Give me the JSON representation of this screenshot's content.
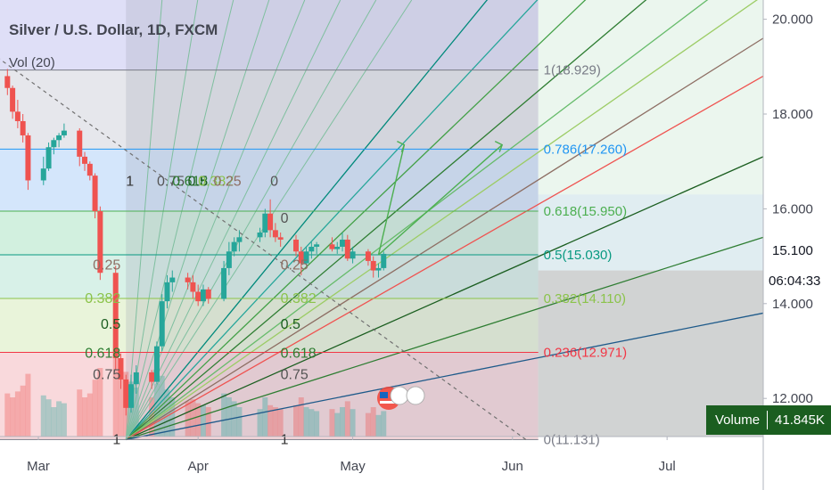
{
  "header": {
    "symbol": "Silver / U.S. Dollar, 1D, FXCM",
    "volume_indicator": "Vol (20)"
  },
  "chart_data": {
    "type": "candlestick",
    "title": "Silver / U.S. Dollar, 1D, FXCM",
    "y_axis": {
      "ticks": [
        "20.000",
        "18.000",
        "16.000",
        "14.000",
        "12.000"
      ],
      "tick_values": [
        20,
        18,
        16,
        14,
        12
      ],
      "range": [
        10.8,
        20.5
      ]
    },
    "x_axis": {
      "labels": [
        "Mar",
        "Apr",
        "May",
        "Jun",
        "Jul"
      ],
      "label_dates": [
        "2020-03-01",
        "2020-04-01",
        "2020-05-01",
        "2020-06-01",
        "2020-07-01"
      ],
      "range": [
        "2020-02-22",
        "2020-07-31"
      ]
    },
    "last_price": "15.100",
    "countdown": "06:04:33",
    "volume_badge": {
      "label": "Volume",
      "value": "41.845K"
    },
    "fib_retracement": {
      "colors": [
        "#787b86",
        "#2962ff",
        "#4caf50",
        "#089981",
        "#81c784",
        "#f23645",
        "#787b86"
      ],
      "levels": [
        {
          "ratio": 1,
          "price": 18.929,
          "text": "1(18.929)",
          "color": "#787b86"
        },
        {
          "ratio": 0.786,
          "price": 17.26,
          "text": "0.786(17.260)",
          "color": "#2196f3"
        },
        {
          "ratio": 0.618,
          "price": 15.95,
          "text": "0.618(15.950)",
          "color": "#4caf50"
        },
        {
          "ratio": 0.5,
          "price": 15.03,
          "text": "0.5(15.030)",
          "color": "#089981"
        },
        {
          "ratio": 0.382,
          "price": 14.11,
          "text": "0.382(14.110)",
          "color": "#8bc34a"
        },
        {
          "ratio": 0.236,
          "price": 12.971,
          "text": "0.236(12.971)",
          "color": "#f23645"
        },
        {
          "ratio": 0,
          "price": 11.131,
          "text": "0(11.131)",
          "color": "#787b86"
        }
      ],
      "end_date": "2020-06-06"
    },
    "gann_box": {
      "start_date": "2020-03-18",
      "price_labels": [
        "1",
        "0.75",
        "0.618",
        "0.5",
        "0.382",
        "0.25"
      ],
      "price_label_values": [
        11.131,
        12.5,
        12.95,
        13.56,
        14.11,
        14.81
      ],
      "mid_labels": [
        "1",
        "0.75",
        "0.618",
        "0.5",
        "0.382",
        "0.25",
        "0"
      ],
      "mid_label_values": [
        11.131,
        12.5,
        12.95,
        13.56,
        14.11,
        14.81,
        15.8
      ],
      "top_labels": [
        "1",
        "0.75",
        "0.618",
        "0.5",
        "0.382",
        "0.25",
        "0"
      ],
      "top_label_values": [
        16.49,
        16.49,
        16.49,
        16.49,
        16.49,
        16.49,
        16.49
      ],
      "top_label_dates": [
        "2020-03-18",
        "2020-03-24",
        "2020-03-27",
        "2020-03-30",
        "2020-04-01",
        "2020-04-04",
        "2020-04-15"
      ],
      "fan_end_prices": [
        27.5,
        25.5,
        24.0,
        22.5,
        21.3,
        20.5,
        19.6,
        18.8,
        17.1,
        15.4,
        13.8
      ]
    },
    "trend_line": {
      "from": [
        "2020-02-22",
        19.2
      ],
      "to": [
        "2020-06-04",
        11.1
      ]
    },
    "projection_arrows": [
      {
        "from": [
          "2020-05-06",
          15.03
        ],
        "to": [
          "2020-05-11",
          17.35
        ]
      },
      {
        "from": [
          "2020-05-06",
          15.03
        ],
        "to": [
          "2020-05-30",
          17.35
        ]
      }
    ],
    "candles": [
      {
        "date": "2020-02-24",
        "o": 18.8,
        "h": 18.95,
        "l": 18.4,
        "c": 18.55
      },
      {
        "date": "2020-02-25",
        "o": 18.55,
        "h": 18.6,
        "l": 17.9,
        "c": 18.05
      },
      {
        "date": "2020-02-26",
        "o": 18.05,
        "h": 18.3,
        "l": 17.7,
        "c": 17.85
      },
      {
        "date": "2020-02-27",
        "o": 17.85,
        "h": 18.0,
        "l": 17.4,
        "c": 17.55
      },
      {
        "date": "2020-02-28",
        "o": 17.55,
        "h": 17.6,
        "l": 16.4,
        "c": 16.6
      },
      {
        "date": "2020-03-02",
        "o": 16.6,
        "h": 17.1,
        "l": 16.5,
        "c": 16.85
      },
      {
        "date": "2020-03-03",
        "o": 16.85,
        "h": 17.4,
        "l": 16.8,
        "c": 17.3
      },
      {
        "date": "2020-03-04",
        "o": 17.3,
        "h": 17.5,
        "l": 17.15,
        "c": 17.45
      },
      {
        "date": "2020-03-05",
        "o": 17.45,
        "h": 17.6,
        "l": 17.3,
        "c": 17.55
      },
      {
        "date": "2020-03-06",
        "o": 17.55,
        "h": 17.8,
        "l": 17.5,
        "c": 17.65
      },
      {
        "date": "2020-03-09",
        "o": 17.65,
        "h": 17.7,
        "l": 16.9,
        "c": 17.1
      },
      {
        "date": "2020-03-10",
        "o": 17.1,
        "h": 17.2,
        "l": 16.8,
        "c": 16.95
      },
      {
        "date": "2020-03-11",
        "o": 16.95,
        "h": 17.0,
        "l": 16.6,
        "c": 16.7
      },
      {
        "date": "2020-03-12",
        "o": 16.7,
        "h": 16.75,
        "l": 15.8,
        "c": 15.95
      },
      {
        "date": "2020-03-13",
        "o": 15.95,
        "h": 16.05,
        "l": 14.5,
        "c": 14.65
      },
      {
        "date": "2020-03-16",
        "o": 14.65,
        "h": 14.8,
        "l": 12.6,
        "c": 12.85
      },
      {
        "date": "2020-03-17",
        "o": 12.85,
        "h": 12.95,
        "l": 12.2,
        "c": 12.4
      },
      {
        "date": "2020-03-18",
        "o": 12.4,
        "h": 12.5,
        "l": 11.64,
        "c": 11.8
      },
      {
        "date": "2020-03-19",
        "o": 11.8,
        "h": 12.5,
        "l": 11.7,
        "c": 12.3
      },
      {
        "date": "2020-03-20",
        "o": 12.3,
        "h": 12.7,
        "l": 12.1,
        "c": 12.55
      },
      {
        "date": "2020-03-23",
        "o": 12.55,
        "h": 12.6,
        "l": 12.2,
        "c": 12.35
      },
      {
        "date": "2020-03-24",
        "o": 12.35,
        "h": 13.2,
        "l": 12.3,
        "c": 13.1
      },
      {
        "date": "2020-03-25",
        "o": 13.1,
        "h": 14.2,
        "l": 13.0,
        "c": 14.05
      },
      {
        "date": "2020-03-26",
        "o": 14.05,
        "h": 14.6,
        "l": 13.9,
        "c": 14.45
      },
      {
        "date": "2020-03-27",
        "o": 14.45,
        "h": 14.7,
        "l": 14.25,
        "c": 14.55
      },
      {
        "date": "2020-03-30",
        "o": 14.55,
        "h": 14.65,
        "l": 14.3,
        "c": 14.45
      },
      {
        "date": "2020-03-31",
        "o": 14.45,
        "h": 14.6,
        "l": 14.1,
        "c": 14.25
      },
      {
        "date": "2020-04-01",
        "o": 14.25,
        "h": 14.4,
        "l": 13.95,
        "c": 14.05
      },
      {
        "date": "2020-04-02",
        "o": 14.05,
        "h": 14.4,
        "l": 13.95,
        "c": 14.3
      },
      {
        "date": "2020-04-03",
        "o": 14.3,
        "h": 14.35,
        "l": 14.0,
        "c": 14.1
      },
      {
        "date": "2020-04-06",
        "o": 14.1,
        "h": 14.9,
        "l": 14.05,
        "c": 14.75
      },
      {
        "date": "2020-04-07",
        "o": 14.75,
        "h": 15.3,
        "l": 14.6,
        "c": 15.1
      },
      {
        "date": "2020-04-08",
        "o": 15.1,
        "h": 15.4,
        "l": 15.0,
        "c": 15.3
      },
      {
        "date": "2020-04-09",
        "o": 15.3,
        "h": 15.55,
        "l": 15.1,
        "c": 15.4
      },
      {
        "date": "2020-04-13",
        "o": 15.4,
        "h": 15.6,
        "l": 15.3,
        "c": 15.5
      },
      {
        "date": "2020-04-14",
        "o": 15.5,
        "h": 16.0,
        "l": 15.4,
        "c": 15.9
      },
      {
        "date": "2020-04-15",
        "o": 15.9,
        "h": 16.2,
        "l": 15.4,
        "c": 15.55
      },
      {
        "date": "2020-04-16",
        "o": 15.55,
        "h": 15.7,
        "l": 15.3,
        "c": 15.4
      },
      {
        "date": "2020-04-17",
        "o": 15.4,
        "h": 15.5,
        "l": 15.2,
        "c": 15.35
      },
      {
        "date": "2020-04-20",
        "o": 15.35,
        "h": 15.45,
        "l": 15.0,
        "c": 15.1
      },
      {
        "date": "2020-04-21",
        "o": 15.1,
        "h": 15.2,
        "l": 14.6,
        "c": 14.85
      },
      {
        "date": "2020-04-22",
        "o": 14.85,
        "h": 15.2,
        "l": 14.8,
        "c": 15.1
      },
      {
        "date": "2020-04-23",
        "o": 15.1,
        "h": 15.3,
        "l": 14.95,
        "c": 15.2
      },
      {
        "date": "2020-04-24",
        "o": 15.2,
        "h": 15.3,
        "l": 15.05,
        "c": 15.25
      },
      {
        "date": "2020-04-27",
        "o": 15.25,
        "h": 15.4,
        "l": 15.1,
        "c": 15.15
      },
      {
        "date": "2020-04-28",
        "o": 15.15,
        "h": 15.3,
        "l": 15.05,
        "c": 15.2
      },
      {
        "date": "2020-04-29",
        "o": 15.2,
        "h": 15.5,
        "l": 15.1,
        "c": 15.35
      },
      {
        "date": "2020-04-30",
        "o": 15.35,
        "h": 15.45,
        "l": 14.9,
        "c": 14.95
      },
      {
        "date": "2020-05-01",
        "o": 14.95,
        "h": 15.2,
        "l": 14.85,
        "c": 15.1
      },
      {
        "date": "2020-05-04",
        "o": 15.1,
        "h": 15.15,
        "l": 14.8,
        "c": 14.9
      },
      {
        "date": "2020-05-05",
        "o": 14.9,
        "h": 15.0,
        "l": 14.55,
        "c": 14.7
      },
      {
        "date": "2020-05-06",
        "o": 14.7,
        "h": 14.85,
        "l": 14.55,
        "c": 14.75
      },
      {
        "date": "2020-05-07",
        "o": 14.75,
        "h": 15.1,
        "l": 14.7,
        "c": 15.05
      }
    ],
    "volume": [
      44,
      40,
      46,
      52,
      64,
      42,
      38,
      30,
      36,
      34,
      48,
      40,
      44,
      58,
      70,
      82,
      70,
      66,
      56,
      50,
      40,
      54,
      62,
      48,
      40,
      36,
      38,
      34,
      32,
      30,
      44,
      40,
      36,
      30,
      28,
      40,
      32,
      30,
      28,
      32,
      40,
      30,
      28,
      26,
      28,
      24,
      30,
      36,
      28,
      24,
      30,
      22,
      26
    ],
    "volume_max": 100
  }
}
